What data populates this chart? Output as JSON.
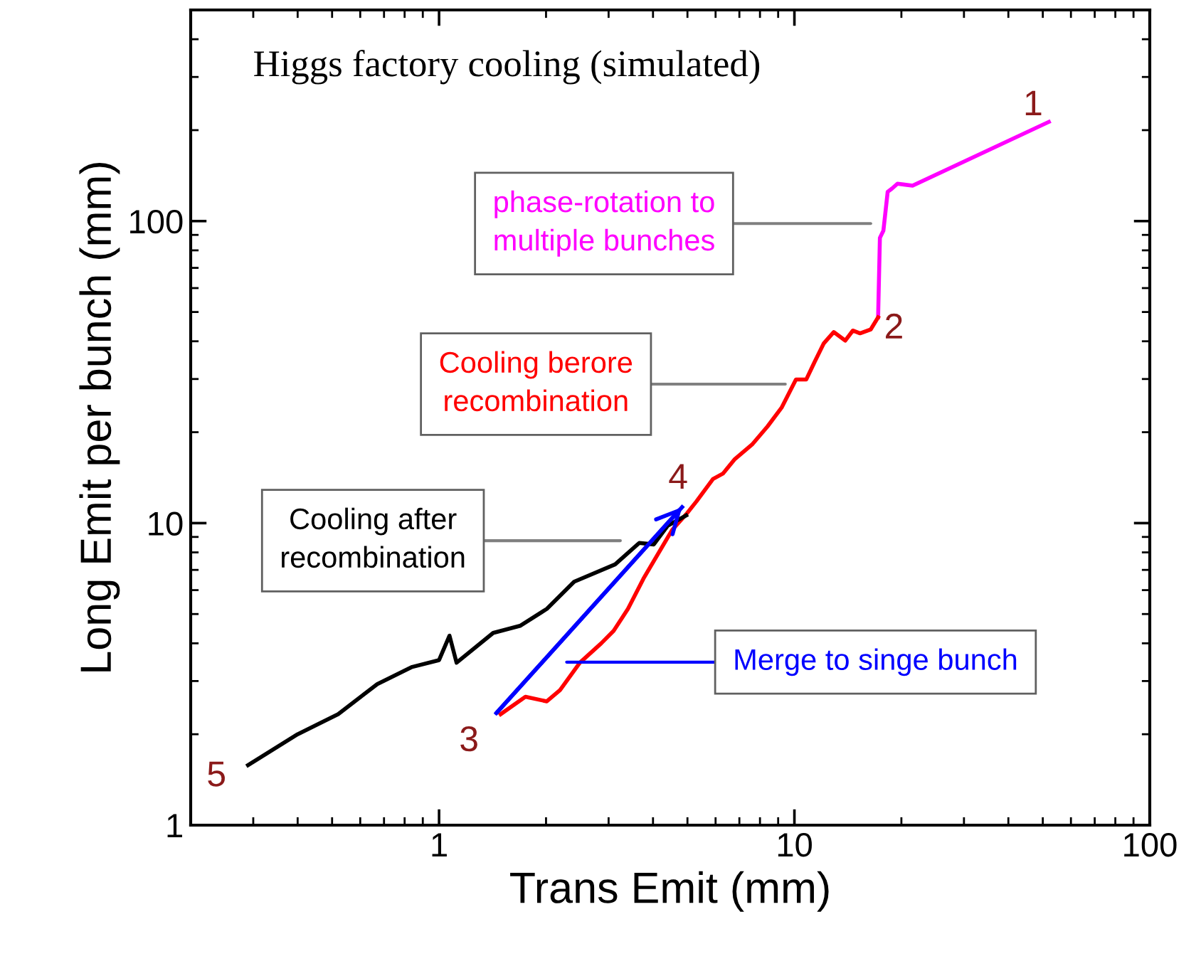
{
  "chart_data": {
    "type": "line",
    "title": "Higgs factory cooling (simulated)",
    "xlabel": "Trans Emit (mm)",
    "ylabel": "Long Emit per bunch (mm)",
    "log": "xy",
    "xlim": [
      0.2,
      100
    ],
    "ylim": [
      1,
      500
    ],
    "xticks": [
      1,
      10,
      100
    ],
    "yticks": [
      1,
      10,
      100
    ],
    "grid": false,
    "legend": false,
    "marker": "none",
    "line_style": "solid",
    "series": [
      {
        "name": "phase-rotation to\nmultiple bunches",
        "color": "#ff00ff",
        "x": [
          52,
          21.5,
          19.5,
          18.8,
          18.3,
          17.8,
          17.4,
          17.2
        ],
        "values": [
          213,
          131,
          133,
          128,
          125,
          93,
          88,
          48
        ]
      },
      {
        "name": "Cooling berore\nrecombination",
        "color": "#ff0000",
        "x": [
          17.2,
          16.4,
          15.3,
          14.6,
          13.9,
          12.9,
          12.1,
          11.4,
          10.8,
          10.1,
          9.2,
          8.4,
          7.6,
          6.8,
          6.3,
          5.9,
          5.3,
          4.96,
          4.53,
          3.76,
          3.4,
          3.1,
          2.86,
          2.49,
          2.19,
          2.01,
          1.75,
          1.49
        ],
        "values": [
          48,
          43.8,
          42.5,
          43.4,
          40.2,
          42.9,
          39.4,
          34.2,
          29.9,
          29.9,
          24.1,
          20.9,
          18.2,
          16.3,
          14.6,
          14.0,
          11.8,
          10.7,
          9.5,
          6.55,
          5.2,
          4.4,
          4.0,
          3.45,
          2.8,
          2.57,
          2.66,
          2.33
        ]
      },
      {
        "name": "Merge to singe bunch",
        "color": "#0000ff",
        "x": [
          1.45,
          4.83
        ],
        "values": [
          2.35,
          11.3
        ]
      },
      {
        "name": "Cooling after\nrecombination",
        "color": "#000000",
        "x": [
          4.96,
          4.4,
          4.02,
          3.66,
          3.13,
          2.4,
          2.01,
          1.69,
          1.42,
          1.12,
          1.07,
          1.0,
          0.84,
          0.67,
          0.52,
          0.4,
          0.29
        ],
        "values": [
          10.6,
          9.8,
          8.5,
          8.6,
          7.3,
          6.4,
          5.2,
          4.57,
          4.33,
          3.45,
          4.24,
          3.52,
          3.34,
          2.93,
          2.33,
          2.0,
          1.58
        ]
      }
    ],
    "annotations": [
      {
        "text": "1",
        "x": 52,
        "y": 213
      },
      {
        "text": "2",
        "x": 17.2,
        "y": 48
      },
      {
        "text": "3",
        "x": 1.49,
        "y": 2.33
      },
      {
        "text": "4",
        "x": 4.83,
        "y": 11.3
      },
      {
        "text": "5",
        "x": 0.29,
        "y": 1.58
      }
    ]
  }
}
